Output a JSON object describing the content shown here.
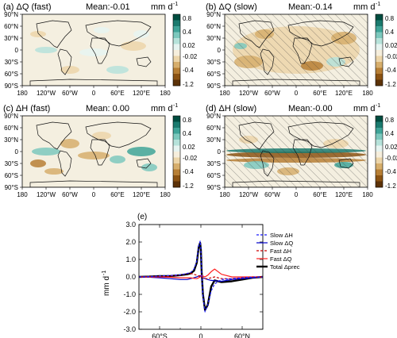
{
  "panels": [
    {
      "id": "a",
      "label": "(a) ΔQ (fast)",
      "mean": "Mean:-0.01",
      "unit": "mm d",
      "unit_sup": "-1",
      "hatched": false,
      "pattern": "weak"
    },
    {
      "id": "b",
      "label": "(b) ΔQ (slow)",
      "mean": "Mean:-0.14",
      "unit": "mm d",
      "unit_sup": "-1",
      "hatched": true,
      "pattern": "dry"
    },
    {
      "id": "c",
      "label": "(c) ΔH (fast)",
      "mean": "Mean: 0.00",
      "unit": "mm d",
      "unit_sup": "-1",
      "hatched": false,
      "pattern": "mixed"
    },
    {
      "id": "d",
      "label": "(d) ΔH (slow)",
      "mean": "Mean:-0.00",
      "unit": "mm d",
      "unit_sup": "-1",
      "hatched": true,
      "pattern": "itcz"
    }
  ],
  "map_lat_ticks": [
    "90°N",
    "60°N",
    "30°N",
    "0",
    "30°S",
    "60°S",
    "90°S"
  ],
  "map_lon_ticks": [
    "180",
    "120°W",
    "60°W",
    "0",
    "60°E",
    "120°E",
    "180"
  ],
  "colorbar": {
    "tick_labels": [
      "0.8",
      "0.4",
      "0.02",
      "-0.02",
      "-0.4",
      "-1.2"
    ],
    "colors": [
      "#004d40",
      "#1b7a6e",
      "#3fa498",
      "#7cc8bd",
      "#b6e2da",
      "#e6f4f1",
      "#f6eedc",
      "#ecd5a9",
      "#d6ae6c",
      "#b77f35",
      "#8b5313",
      "#5c3208"
    ]
  },
  "chart_data": {
    "type": "line",
    "panel_label": "(e)",
    "ylabel": "mm d",
    "ylabel_sup": "-1",
    "ylim": [
      -3.0,
      3.0
    ],
    "y_ticks": [
      "3.0",
      "2.0",
      "1.0",
      "0.0",
      "-1.0",
      "-2.0",
      "-3.0"
    ],
    "xlim": [
      -90,
      90
    ],
    "x_ticks": [
      "60°S",
      "0",
      "60°N"
    ],
    "x": [
      -90,
      -75,
      -60,
      -45,
      -30,
      -20,
      -15,
      -10,
      -6,
      -3,
      -1,
      0,
      1,
      3,
      6,
      10,
      15,
      20,
      30,
      45,
      60,
      75,
      90
    ],
    "series": [
      {
        "name": "Slow ΔH",
        "color": "#1a1aff",
        "dash": "3,2",
        "width": 1.2,
        "values": [
          0,
          0.02,
          0.05,
          0.08,
          0.12,
          0.2,
          0.25,
          0.45,
          0.9,
          1.8,
          2.05,
          1.6,
          0.3,
          -1.1,
          -2.0,
          -1.6,
          -0.8,
          -0.4,
          -0.15,
          -0.1,
          -0.05,
          -0.02,
          0
        ]
      },
      {
        "name": "Slow ΔQ",
        "color": "#0000cc",
        "dash": "",
        "width": 1.2,
        "values": [
          0,
          -0.02,
          -0.05,
          -0.1,
          -0.15,
          -0.15,
          -0.1,
          -0.05,
          0,
          0.05,
          0.08,
          0.05,
          0,
          -0.05,
          -0.1,
          -0.15,
          -0.2,
          -0.22,
          -0.25,
          -0.15,
          -0.1,
          -0.05,
          0
        ]
      },
      {
        "name": "Fast ΔH",
        "color": "#cc0000",
        "dash": "3,2",
        "width": 1.2,
        "values": [
          0,
          0.02,
          0.05,
          0.05,
          0.1,
          0.2,
          0.2,
          0.15,
          0.1,
          0.05,
          0,
          0,
          0,
          -0.05,
          -0.1,
          -0.1,
          -0.05,
          0,
          -0.1,
          -0.1,
          -0.05,
          0,
          0
        ]
      },
      {
        "name": "Fast ΔQ",
        "color": "#ff2020",
        "dash": "",
        "width": 1.2,
        "values": [
          0,
          0,
          0,
          -0.02,
          -0.05,
          -0.05,
          -0.05,
          -0.08,
          -0.1,
          -0.05,
          0,
          0.05,
          0.1,
          0.05,
          0,
          0.1,
          0.3,
          0.45,
          0.15,
          0,
          0,
          0,
          0
        ]
      },
      {
        "name": "Total Δprec",
        "color": "#000000",
        "dash": "",
        "width": 2.4,
        "values": [
          0,
          0.02,
          0.05,
          0.05,
          0.1,
          0.15,
          0.2,
          0.35,
          0.8,
          1.75,
          1.95,
          1.55,
          0.35,
          -1.0,
          -1.9,
          -1.6,
          -0.55,
          -0.2,
          -0.3,
          -0.25,
          -0.15,
          -0.05,
          0
        ]
      }
    ]
  }
}
